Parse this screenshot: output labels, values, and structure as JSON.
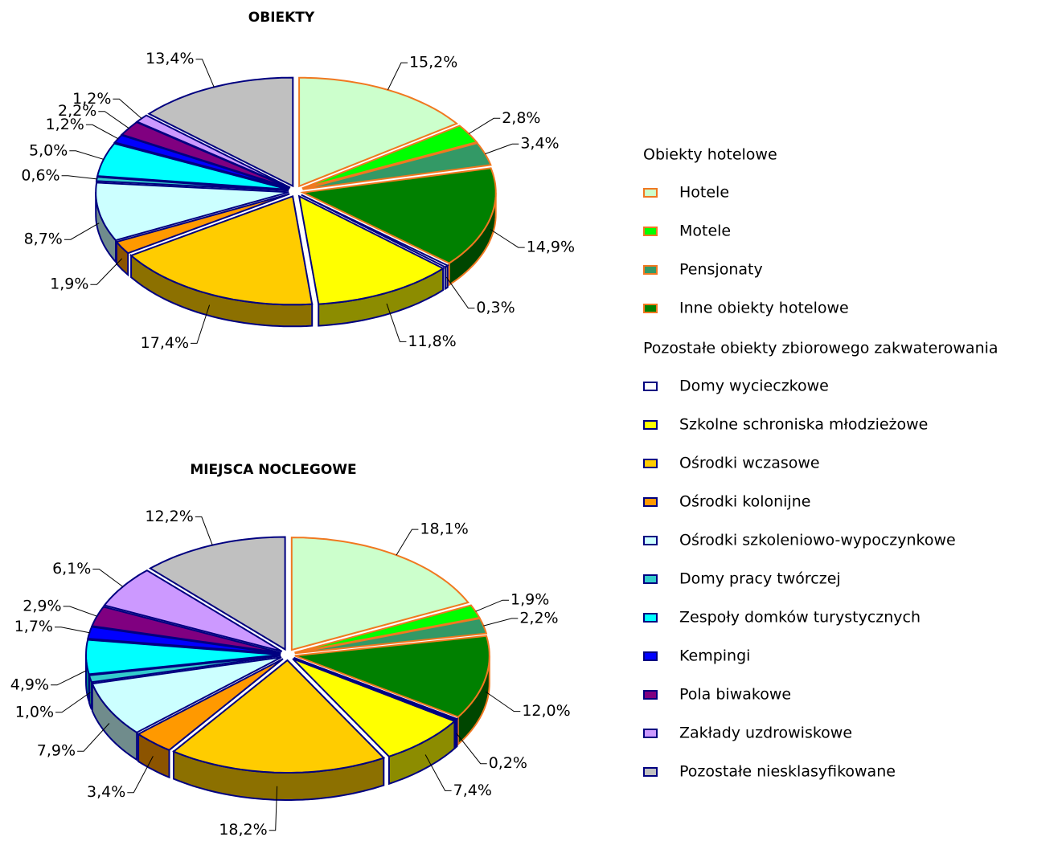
{
  "chart_data": [
    {
      "type": "pie",
      "title": "OBIEKTY",
      "values": [
        15.2,
        2.8,
        3.4,
        14.9,
        0.3,
        11.8,
        17.4,
        1.9,
        8.7,
        0.6,
        5.0,
        1.2,
        2.2,
        1.2,
        13.4
      ],
      "value_labels": [
        "15,2%",
        "2,8%",
        "3,4%",
        "14,9%",
        "0,3%",
        "11,8%",
        "17,4%",
        "1,9%",
        "8,7%",
        "0,6%",
        "5,0%",
        "1,2%",
        "2,2%",
        "1,2%",
        "13,4%"
      ]
    },
    {
      "type": "pie",
      "title": "MIEJSCA NOCLEGOWE",
      "values": [
        18.1,
        1.9,
        2.2,
        12.0,
        0.2,
        7.4,
        18.2,
        3.4,
        7.9,
        1.0,
        4.9,
        1.7,
        2.9,
        6.1,
        12.2
      ],
      "value_labels": [
        "18,1%",
        "1,9%",
        "2,2%",
        "12,0%",
        "0,2%",
        "7,4%",
        "18,2%",
        "3,4%",
        "7,9%",
        "1,0%",
        "4,9%",
        "1,7%",
        "2,9%",
        "6,1%",
        "12,2%"
      ]
    }
  ],
  "legend": {
    "groups": [
      {
        "title": "Obiekty hotelowe",
        "edge": "#f07820",
        "items": [
          {
            "name": "Hotele",
            "color": "#ccffcc"
          },
          {
            "name": "Motele",
            "color": "#00ff00"
          },
          {
            "name": "Pensjonaty",
            "color": "#339966"
          },
          {
            "name": "Inne obiekty hotelowe",
            "color": "#008000"
          }
        ]
      },
      {
        "title": "Pozostałe obiekty zbiorowego zakwaterowania",
        "edge": "#000080",
        "items": [
          {
            "name": "Domy wycieczkowe",
            "color": "#ffffff"
          },
          {
            "name": "Szkolne schroniska młodzieżowe",
            "color": "#ffff00"
          },
          {
            "name": "Ośrodki wczasowe",
            "color": "#ffcc00"
          },
          {
            "name": "Ośrodki kolonijne",
            "color": "#ff9900"
          },
          {
            "name": "Ośrodki szkoleniowo-wypoczynkowe",
            "color": "#ccffff"
          },
          {
            "name": "Domy pracy twórczej",
            "color": "#33cccc"
          },
          {
            "name": "Zespoły domków turystycznych",
            "color": "#00ffff"
          },
          {
            "name": "Kempingi",
            "color": "#0000ff"
          },
          {
            "name": "Pola biwakowe",
            "color": "#800080"
          },
          {
            "name": "Zakłady uzdrowiskowe",
            "color": "#cc99ff"
          },
          {
            "name": "Pozostałe niesklasyfikowane",
            "color": "#c0c0c0"
          }
        ]
      }
    ]
  }
}
